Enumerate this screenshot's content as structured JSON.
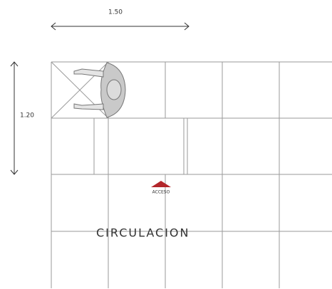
{
  "dimensions": {
    "width_label": "1.50",
    "height_label": "1.20"
  },
  "labels": {
    "access": "ACCESO",
    "circulation": "CIRCULACION"
  }
}
